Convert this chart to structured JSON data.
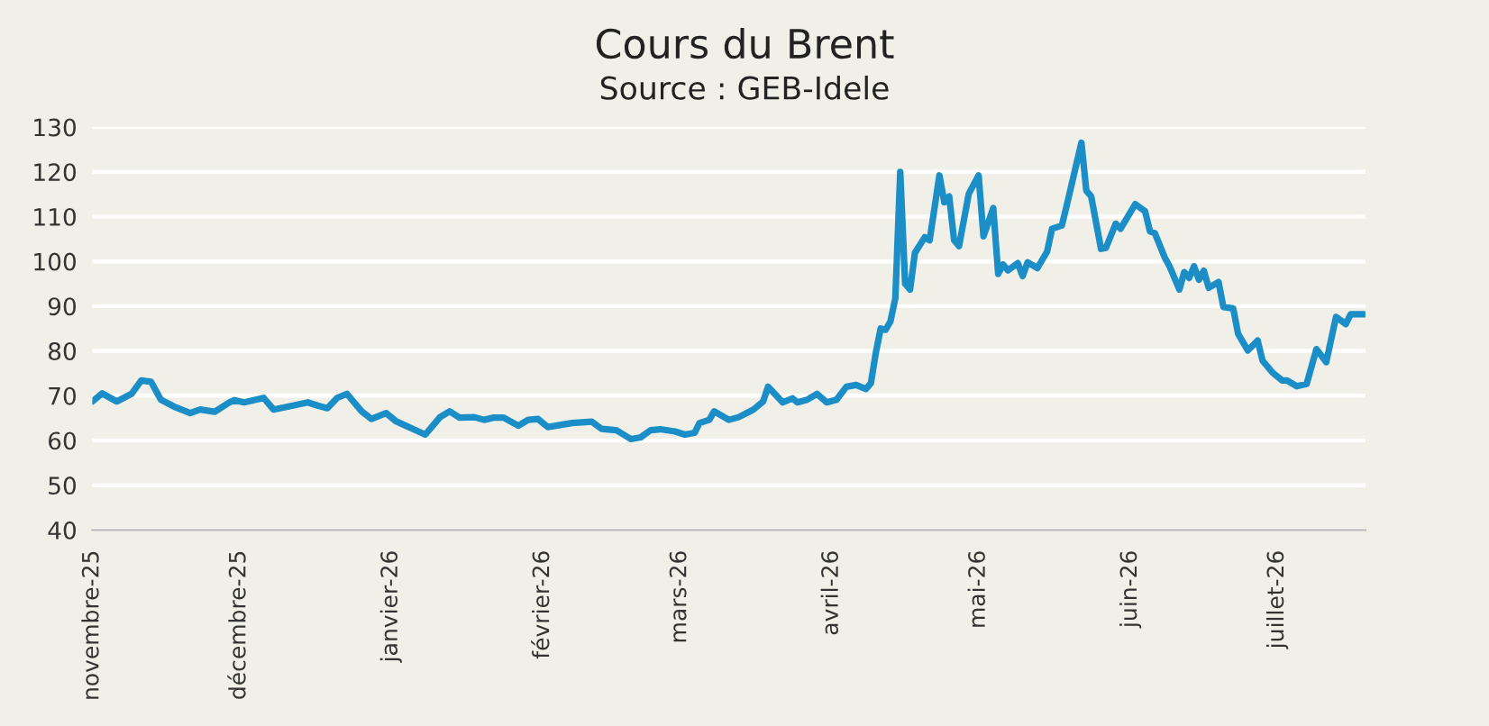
{
  "chart_data": {
    "type": "line",
    "title": "Cours du Brent",
    "subtitle": "Source : GEB-Idele",
    "x": [
      "2025-11-01",
      "2025-11-03",
      "2025-11-06",
      "2025-11-09",
      "2025-11-11",
      "2025-11-13",
      "2025-11-15",
      "2025-11-18",
      "2025-11-21",
      "2025-11-23",
      "2025-11-26",
      "2025-11-29",
      "2025-11-30",
      "2025-12-02",
      "2025-12-06",
      "2025-12-08",
      "2025-12-12",
      "2025-12-15",
      "2025-12-17",
      "2025-12-19",
      "2025-12-21",
      "2025-12-23",
      "2025-12-26",
      "2025-12-28",
      "2025-12-31",
      "2026-01-02",
      "2026-01-06",
      "2026-01-08",
      "2026-01-11",
      "2026-01-13",
      "2026-01-15",
      "2026-01-18",
      "2026-01-20",
      "2026-01-22",
      "2026-01-24",
      "2026-01-27",
      "2026-01-29",
      "2026-01-31",
      "2026-02-02",
      "2026-02-07",
      "2026-02-11",
      "2026-02-13",
      "2026-02-16",
      "2026-02-19",
      "2026-02-21",
      "2026-02-23",
      "2026-02-25",
      "2026-02-28",
      "2026-03-02",
      "2026-03-04",
      "2026-03-05",
      "2026-03-07",
      "2026-03-08",
      "2026-03-11",
      "2026-03-13",
      "2026-03-16",
      "2026-03-18",
      "2026-03-19",
      "2026-03-22",
      "2026-03-24",
      "2026-03-25",
      "2026-03-27",
      "2026-03-29",
      "2026-03-31",
      "2026-04-02",
      "2026-04-04",
      "2026-04-06",
      "2026-04-08",
      "2026-04-09",
      "2026-04-10",
      "2026-04-11",
      "2026-04-12",
      "2026-04-13",
      "2026-04-14",
      "2026-04-15",
      "2026-04-16",
      "2026-04-17",
      "2026-04-18",
      "2026-04-20",
      "2026-04-21",
      "2026-04-23",
      "2026-04-24",
      "2026-04-25",
      "2026-04-26",
      "2026-04-27",
      "2026-04-29",
      "2026-05-01",
      "2026-05-02",
      "2026-05-04",
      "2026-05-05",
      "2026-05-06",
      "2026-05-07",
      "2026-05-09",
      "2026-05-10",
      "2026-05-11",
      "2026-05-13",
      "2026-05-15",
      "2026-05-16",
      "2026-05-18",
      "2026-05-19",
      "2026-05-22",
      "2026-05-23",
      "2026-05-24",
      "2026-05-26",
      "2026-05-27",
      "2026-05-29",
      "2026-05-30",
      "2026-06-02",
      "2026-06-04",
      "2026-06-05",
      "2026-06-06",
      "2026-06-08",
      "2026-06-09",
      "2026-06-11",
      "2026-06-12",
      "2026-06-13",
      "2026-06-14",
      "2026-06-15",
      "2026-06-16",
      "2026-06-17",
      "2026-06-19",
      "2026-06-20",
      "2026-06-22",
      "2026-06-23",
      "2026-06-25",
      "2026-06-27",
      "2026-06-28",
      "2026-06-30",
      "2026-07-02",
      "2026-07-03",
      "2026-07-05",
      "2026-07-07",
      "2026-07-09",
      "2026-07-11",
      "2026-07-13",
      "2026-07-15",
      "2026-07-16",
      "2026-07-19"
    ],
    "series": [
      {
        "color": "#1b8ec7",
        "values": [
          68.7,
          70.5,
          68.7,
          70.4,
          73.4,
          73.1,
          69.1,
          67.4,
          66.1,
          66.9,
          66.4,
          68.5,
          69.0,
          68.5,
          69.5,
          66.9,
          67.8,
          68.5,
          67.8,
          67.2,
          69.5,
          70.4,
          66.5,
          64.8,
          66.1,
          64.3,
          62.3,
          61.3,
          65.2,
          66.5,
          65.1,
          65.2,
          64.6,
          65.1,
          65.1,
          63.3,
          64.6,
          64.8,
          63.0,
          63.9,
          64.2,
          62.6,
          62.3,
          60.3,
          60.7,
          62.3,
          62.5,
          62.0,
          61.3,
          61.7,
          63.9,
          64.6,
          66.5,
          64.6,
          65.2,
          66.9,
          68.7,
          72.0,
          68.5,
          69.4,
          68.5,
          69.1,
          70.4,
          68.5,
          69.1,
          72.0,
          72.4,
          71.5,
          72.8,
          79.5,
          85.0,
          84.7,
          86.6,
          91.8,
          120.0,
          95.0,
          93.7,
          101.9,
          105.4,
          104.7,
          119.2,
          113.2,
          114.5,
          104.7,
          103.4,
          115.1,
          119.2,
          105.6,
          111.9,
          97.2,
          99.3,
          98.0,
          99.6,
          96.7,
          99.8,
          98.5,
          102.2,
          107.3,
          108.0,
          112.5,
          126.5,
          115.8,
          114.5,
          102.8,
          103.0,
          108.4,
          107.3,
          112.8,
          111.2,
          106.7,
          106.3,
          100.9,
          98.9,
          93.7,
          97.6,
          96.3,
          98.9,
          95.9,
          97.9,
          94.1,
          95.4,
          89.8,
          89.5,
          83.8,
          80.1,
          82.3,
          77.8,
          75.2,
          73.4,
          73.4,
          72.1,
          72.6,
          80.4,
          77.5,
          87.6,
          86.0,
          88.2,
          88.2
        ]
      }
    ],
    "xlim": [
      "2025-11-01",
      "2026-07-19"
    ],
    "xticks": [
      {
        "value": "2025-11-01",
        "label": "novembre-25"
      },
      {
        "value": "2025-12-01",
        "label": "décembre-25"
      },
      {
        "value": "2026-01-01",
        "label": "janvier-26"
      },
      {
        "value": "2026-02-01",
        "label": "février-26"
      },
      {
        "value": "2026-03-01",
        "label": "mars-26"
      },
      {
        "value": "2026-04-01",
        "label": "avril-26"
      },
      {
        "value": "2026-05-01",
        "label": "mai-26"
      },
      {
        "value": "2026-06-01",
        "label": "juin-26"
      },
      {
        "value": "2026-07-01",
        "label": "juillet-26"
      }
    ],
    "ylim": [
      40,
      130
    ],
    "yticks": [
      40,
      50,
      60,
      70,
      80,
      90,
      100,
      110,
      120,
      130
    ],
    "grid": "y",
    "marker": "none",
    "line_style": "solid"
  }
}
